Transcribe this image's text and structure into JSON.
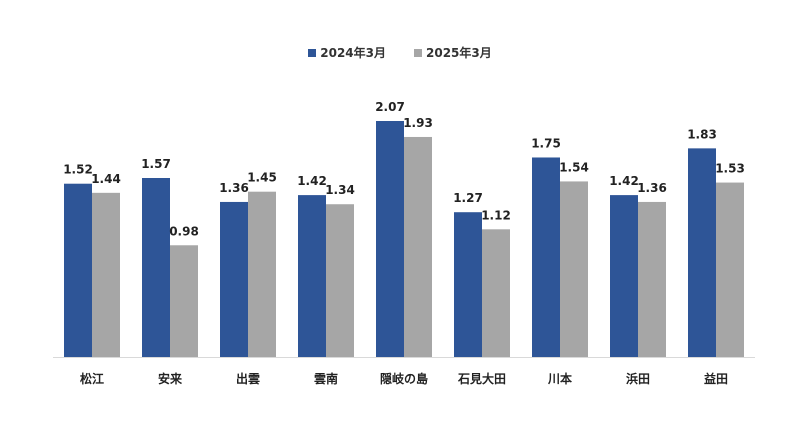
{
  "chart_data": {
    "type": "bar",
    "categories": [
      "松江",
      "安来",
      "出雲",
      "雲南",
      "隠岐の島",
      "石見大田",
      "川本",
      "浜田",
      "益田"
    ],
    "series": [
      {
        "name": "2024年3月",
        "color": "#2e5597",
        "values": [
          1.52,
          1.57,
          1.36,
          1.42,
          2.07,
          1.27,
          1.75,
          1.42,
          1.83
        ]
      },
      {
        "name": "2025年3月",
        "color": "#a6a6a6",
        "values": [
          1.44,
          0.98,
          1.45,
          1.34,
          1.93,
          1.12,
          1.54,
          1.36,
          1.53
        ]
      }
    ],
    "value_labels": [
      [
        "1.52",
        "1.57",
        "1.36",
        "1.42",
        "2.07",
        "1.27",
        "1.75",
        "1.42",
        "1.83"
      ],
      [
        "1.44",
        "0.98",
        "1.45",
        "1.34",
        "1.93",
        "1.12",
        "1.54",
        "1.36",
        "1.53"
      ]
    ],
    "ylim": [
      0,
      2.07
    ],
    "legend_position": "top-center",
    "grid": false
  }
}
